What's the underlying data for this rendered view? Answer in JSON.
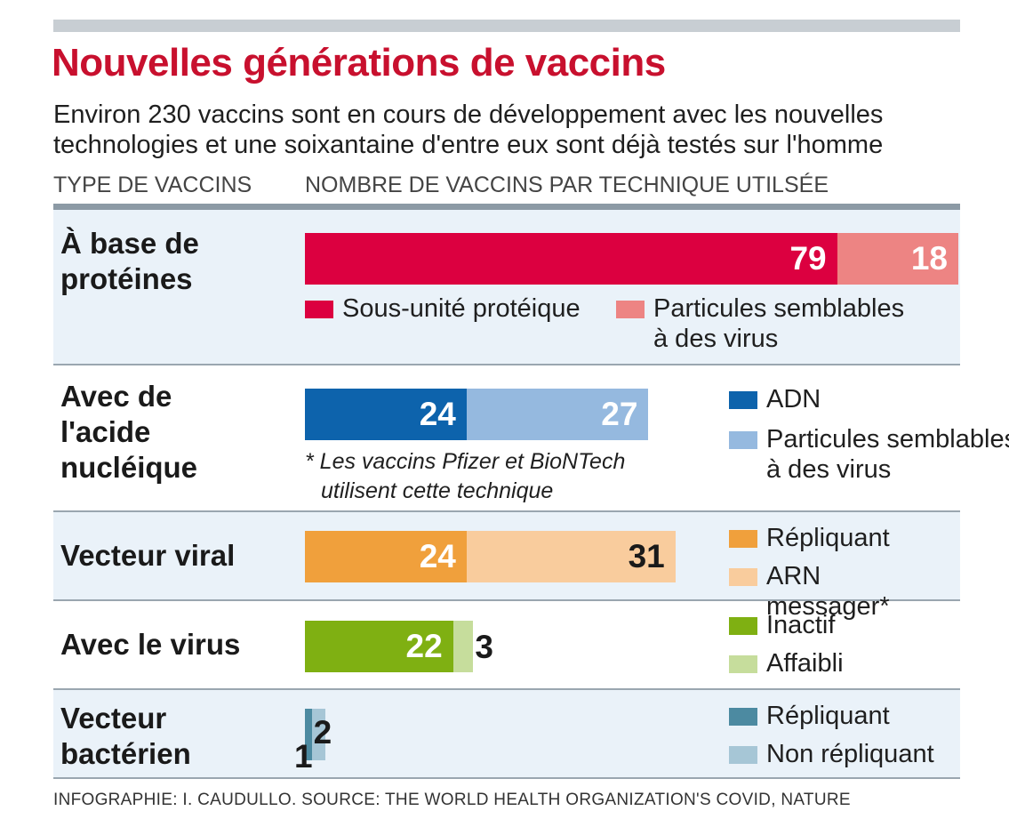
{
  "header": {
    "title": "Nouvelles générations de vaccins",
    "subtitle": "Environ 230 vaccins sont en cours de développement avec les nouvelles technologies et une soixantaine d'entre eux sont déjà testés sur l'homme",
    "col_type": "TYPE DE VACCINS",
    "col_count": "NOMBRE DE VACCINS PAR TECHNIQUE UTILSÉE"
  },
  "note": {
    "line1": "* Les vaccins Pfizer et BioNTech",
    "line2": "utilisent cette technique"
  },
  "source": "INFOGRAPHIE: I. CAUDULLO. SOURCE: THE WORLD HEALTH ORGANIZATION'S COVID, NATURE",
  "chart_data": {
    "type": "bar",
    "orientation": "horizontal",
    "stacked": true,
    "title": "Nouvelles générations de vaccins",
    "categories": [
      "À base de protéines",
      "Avec de l'acide nucléique",
      "Vecteur viral",
      "Avec le virus",
      "Vecteur bactérien"
    ],
    "rows": [
      {
        "label": "À base de protéines",
        "segments": [
          {
            "name": "Sous-unité protéique",
            "value": 79,
            "color": "#dc0040"
          },
          {
            "name": "Particules semblables à des virus",
            "value": 18,
            "color": "#ed8483"
          }
        ]
      },
      {
        "label": "Avec de l'acide nucléique",
        "segments": [
          {
            "name": "ADN",
            "value": 24,
            "color": "#0d63ac"
          },
          {
            "name": "ARN messager*",
            "value": 27,
            "color": "#95b9df"
          }
        ]
      },
      {
        "label": "Vecteur viral",
        "segments": [
          {
            "name": "Répliquant",
            "value": 24,
            "color": "#f0a03c"
          },
          {
            "name": "Non répliquant",
            "value": 31,
            "color": "#f9cc9d"
          }
        ]
      },
      {
        "label": "Avec le virus",
        "segments": [
          {
            "name": "Inactif",
            "value": 22,
            "color": "#7fb012"
          },
          {
            "name": "Affaibli",
            "value": 3,
            "color": "#c6dd9c"
          }
        ]
      },
      {
        "label": "Vecteur bactérien",
        "segments": [
          {
            "name": "Répliquant",
            "value": 1,
            "color": "#4c8aa1"
          },
          {
            "name": "Non répliquant",
            "value": 2,
            "color": "#a6c6d6"
          }
        ]
      }
    ]
  }
}
